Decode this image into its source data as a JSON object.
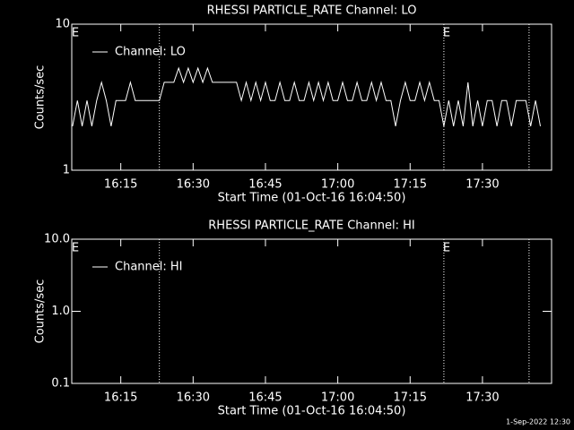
{
  "chart_data": [
    {
      "type": "line",
      "title": "RHESSI PARTICLE_RATE Channel: LO",
      "xlabel": "Start Time (01-Oct-16 16:04:50)",
      "ylabel": "Counts/sec",
      "log_y": true,
      "xlim": [
        "16:04:50",
        "17:44:20"
      ],
      "xticks": [
        "16:15",
        "16:30",
        "16:45",
        "17:00",
        "17:15",
        "17:30"
      ],
      "ylim": [
        1,
        10
      ],
      "yticks": [
        1,
        10
      ],
      "legend": "upper left",
      "markers": [
        "16:23",
        "17:22",
        "17:39:40"
      ],
      "annotations": [
        {
          "x": "16:05",
          "label": "E"
        },
        {
          "x": "17:22",
          "label": "E"
        }
      ],
      "x": [
        "16:05",
        "16:06",
        "16:07",
        "16:08",
        "16:09",
        "16:10",
        "16:11",
        "16:12",
        "16:13",
        "16:14",
        "16:15",
        "16:16",
        "16:17",
        "16:18",
        "16:19",
        "16:20",
        "16:21",
        "16:22",
        "16:23",
        "16:24",
        "16:25",
        "16:26",
        "16:27",
        "16:28",
        "16:29",
        "16:30",
        "16:31",
        "16:32",
        "16:33",
        "16:34",
        "16:35",
        "16:36",
        "16:37",
        "16:38",
        "16:39",
        "16:40",
        "16:41",
        "16:42",
        "16:43",
        "16:44",
        "16:45",
        "16:46",
        "16:47",
        "16:48",
        "16:49",
        "16:50",
        "16:51",
        "16:52",
        "16:53",
        "16:54",
        "16:55",
        "16:56",
        "16:57",
        "16:58",
        "16:59",
        "17:00",
        "17:01",
        "17:02",
        "17:03",
        "17:04",
        "17:05",
        "17:06",
        "17:07",
        "17:08",
        "17:09",
        "17:10",
        "17:11",
        "17:12",
        "17:13",
        "17:14",
        "17:15",
        "17:16",
        "17:17",
        "17:18",
        "17:19",
        "17:20",
        "17:21",
        "17:22",
        "17:23",
        "17:24",
        "17:25",
        "17:26",
        "17:27",
        "17:28",
        "17:29",
        "17:30",
        "17:31",
        "17:32",
        "17:33",
        "17:34",
        "17:35",
        "17:36",
        "17:37",
        "17:38",
        "17:39",
        "17:40",
        "17:41",
        "17:42"
      ],
      "series": [
        {
          "name": "Channel: LO",
          "color": "#ffffff",
          "values": [
            2,
            3,
            2,
            3,
            2,
            3,
            4,
            3,
            2,
            3,
            3,
            3,
            4,
            3,
            3,
            3,
            3,
            3,
            3,
            4,
            4,
            4,
            5,
            4,
            5,
            4,
            5,
            4,
            5,
            4,
            4,
            4,
            4,
            4,
            4,
            3,
            4,
            3,
            4,
            3,
            4,
            3,
            3,
            4,
            3,
            3,
            4,
            3,
            3,
            4,
            3,
            4,
            3,
            4,
            3,
            3,
            4,
            3,
            3,
            4,
            3,
            3,
            4,
            3,
            4,
            3,
            3,
            2,
            3,
            4,
            3,
            3,
            4,
            3,
            4,
            3,
            3,
            2,
            3,
            2,
            3,
            2,
            4,
            2,
            3,
            2,
            3,
            3,
            2,
            3,
            3,
            2,
            3,
            3,
            3,
            2,
            3,
            2
          ]
        }
      ]
    },
    {
      "type": "line",
      "title": "RHESSI PARTICLE_RATE Channel: HI",
      "xlabel": "Start Time (01-Oct-16 16:04:50)",
      "ylabel": "Counts/sec",
      "log_y": true,
      "xlim": [
        "16:04:50",
        "17:44:20"
      ],
      "xticks": [
        "16:15",
        "16:30",
        "16:45",
        "17:00",
        "17:15",
        "17:30"
      ],
      "ylim": [
        0.1,
        10
      ],
      "yticks": [
        {
          "value": 0.1,
          "label": "0.1"
        },
        {
          "value": 1,
          "label": "1.0"
        },
        {
          "value": 10,
          "label": "10.0"
        }
      ],
      "legend": "upper left",
      "markers": [
        "16:23",
        "17:22",
        "17:39:40"
      ],
      "annotations": [
        {
          "x": "16:05",
          "label": "E"
        },
        {
          "x": "17:22",
          "label": "E"
        }
      ],
      "x": [],
      "series": [
        {
          "name": "Channel: HI",
          "color": "#ffffff",
          "values": []
        }
      ]
    }
  ],
  "footer": "1-Sep-2022 12:30"
}
